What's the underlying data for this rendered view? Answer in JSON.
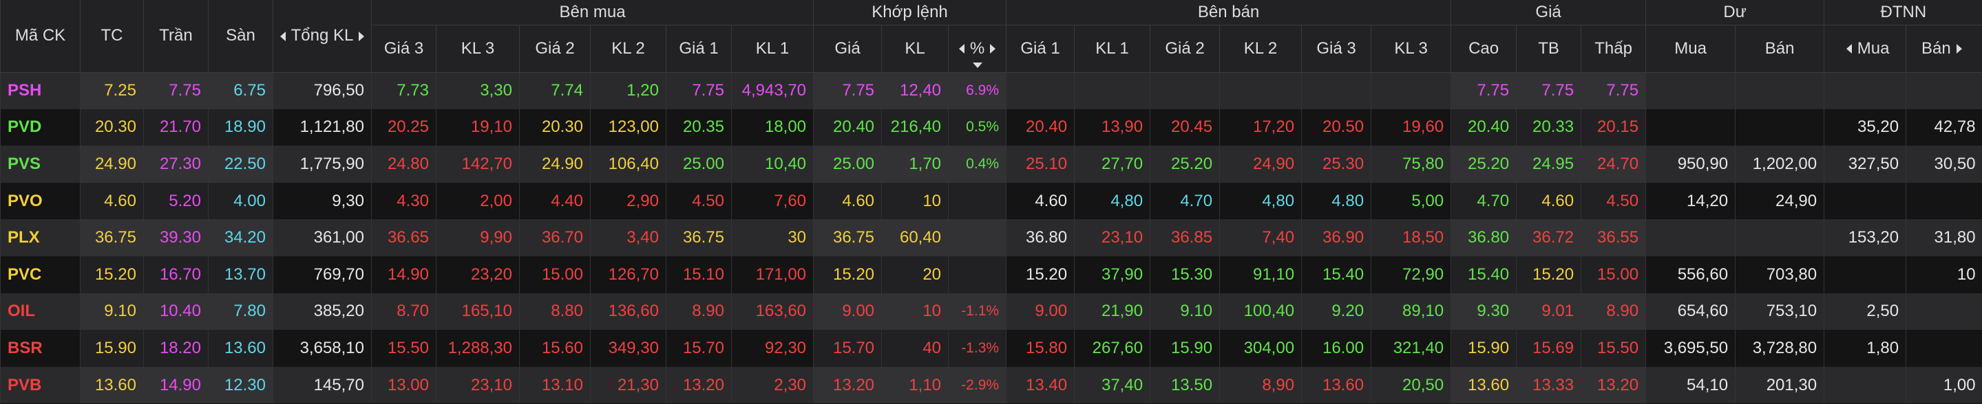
{
  "header": {
    "fixed": [
      "Mã CK",
      "TC",
      "Trần",
      "Sàn",
      "Tổng KL"
    ],
    "groups": [
      "Bên mua",
      "Khớp lệnh",
      "Bên bán",
      "Giá",
      "Dư",
      "ĐTNN"
    ],
    "sub": [
      "Giá 3",
      "KL 3",
      "Giá 2",
      "KL 2",
      "Giá 1",
      "KL 1",
      "Giá",
      "KL",
      "%",
      "Giá 1",
      "KL 1",
      "Giá 2",
      "KL 2",
      "Giá 3",
      "KL 3",
      "Cao",
      "TB",
      "Thấp",
      "Mua",
      "Bán",
      "Mua",
      "Bán"
    ]
  },
  "rows": [
    [
      "PSH",
      "7.25",
      "7.75",
      "6.75",
      "796,50",
      "7.73",
      "3,30",
      "7.74",
      "1,20",
      "7.75",
      "4,943,70",
      "7.75",
      "12,40",
      "6.9%",
      null,
      null,
      null,
      null,
      null,
      null,
      "7.75",
      "7.75",
      "7.75",
      null,
      null,
      null,
      null
    ],
    [
      "PVD",
      "20.30",
      "21.70",
      "18.90",
      "1,121,80",
      "20.25",
      "19,10",
      "20.30",
      "123,00",
      "20.35",
      "18,00",
      "20.40",
      "216,40",
      "0.5%",
      "20.40",
      "13,90",
      "20.45",
      "17,20",
      "20.50",
      "19,60",
      "20.40",
      "20.33",
      "20.15",
      null,
      null,
      "35,20",
      "42,78"
    ],
    [
      "PVS",
      "24.90",
      "27.30",
      "22.50",
      "1,775,90",
      "24.80",
      "142,70",
      "24.90",
      "106,40",
      "25.00",
      "10,40",
      "25.00",
      "1,70",
      "0.4%",
      "25.10",
      "27,70",
      "25.20",
      "24,90",
      "25.30",
      "75,80",
      "25.20",
      "24.95",
      "24.70",
      "950,90",
      "1,202,00",
      "327,50",
      "30,50"
    ],
    [
      "PVO",
      "4.60",
      "5.20",
      "4.00",
      "9,30",
      "4.30",
      "2,00",
      "4.40",
      "2,90",
      "4.50",
      "7,60",
      "4.60",
      "10",
      null,
      "4.60",
      "4,80",
      "4.70",
      "4,80",
      "4.80",
      "5,00",
      "4.70",
      "4.60",
      "4.50",
      "14,20",
      "24,90",
      null,
      null
    ],
    [
      "PLX",
      "36.75",
      "39.30",
      "34.20",
      "361,00",
      "36.65",
      "9,90",
      "36.70",
      "3,40",
      "36.75",
      "30",
      "36.75",
      "60,40",
      null,
      "36.80",
      "23,10",
      "36.85",
      "7,40",
      "36.90",
      "18,50",
      "36.80",
      "36.72",
      "36.55",
      null,
      null,
      "153,20",
      "31,80"
    ],
    [
      "PVC",
      "15.20",
      "16.70",
      "13.70",
      "769,70",
      "14.90",
      "23,20",
      "15.00",
      "126,70",
      "15.10",
      "171,00",
      "15.20",
      "20",
      null,
      "15.20",
      "37,90",
      "15.30",
      "91,10",
      "15.40",
      "72,90",
      "15.40",
      "15.20",
      "15.00",
      "556,60",
      "703,80",
      null,
      "10"
    ],
    [
      "OIL",
      "9.10",
      "10.40",
      "7.80",
      "385,20",
      "8.70",
      "165,10",
      "8.80",
      "136,60",
      "8.90",
      "163,60",
      "9.00",
      "10",
      "-1.1%",
      "9.00",
      "21,90",
      "9.10",
      "100,40",
      "9.20",
      "89,10",
      "9.30",
      "9.01",
      "8.90",
      "654,60",
      "753,10",
      "2,50",
      null
    ],
    [
      "BSR",
      "15.90",
      "18.20",
      "13.60",
      "3,658,10",
      "15.50",
      "1,288,30",
      "15.60",
      "349,30",
      "15.70",
      "92,30",
      "15.70",
      "40",
      "-1.3%",
      "15.80",
      "267,60",
      "15.90",
      "304,00",
      "16.00",
      "321,40",
      "15.90",
      "15.69",
      "15.50",
      "3,695,50",
      "3,728,80",
      "1,80",
      null
    ],
    [
      "PVB",
      "13.60",
      "14.90",
      "12.30",
      "145,70",
      "13.00",
      "23,10",
      "13.10",
      "21,30",
      "13.20",
      "2,30",
      "13.20",
      "1,10",
      "-2.9%",
      "13.40",
      "37,40",
      "13.50",
      "8,90",
      "13.60",
      "20,50",
      "13.60",
      "13.33",
      "13.20",
      "54,10",
      "201,30",
      null,
      "1,00"
    ]
  ]
}
